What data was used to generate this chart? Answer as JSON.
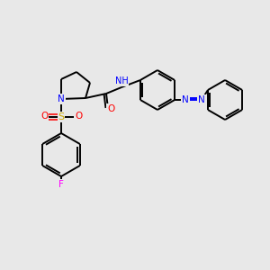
{
  "background_color": "#e8e8e8",
  "bond_color": "#000000",
  "atom_colors": {
    "N": "#0000ff",
    "O": "#ff0000",
    "S": "#ccaa00",
    "F": "#ff00ff",
    "H": "#008080",
    "C": "#000000"
  },
  "lw": 1.4
}
